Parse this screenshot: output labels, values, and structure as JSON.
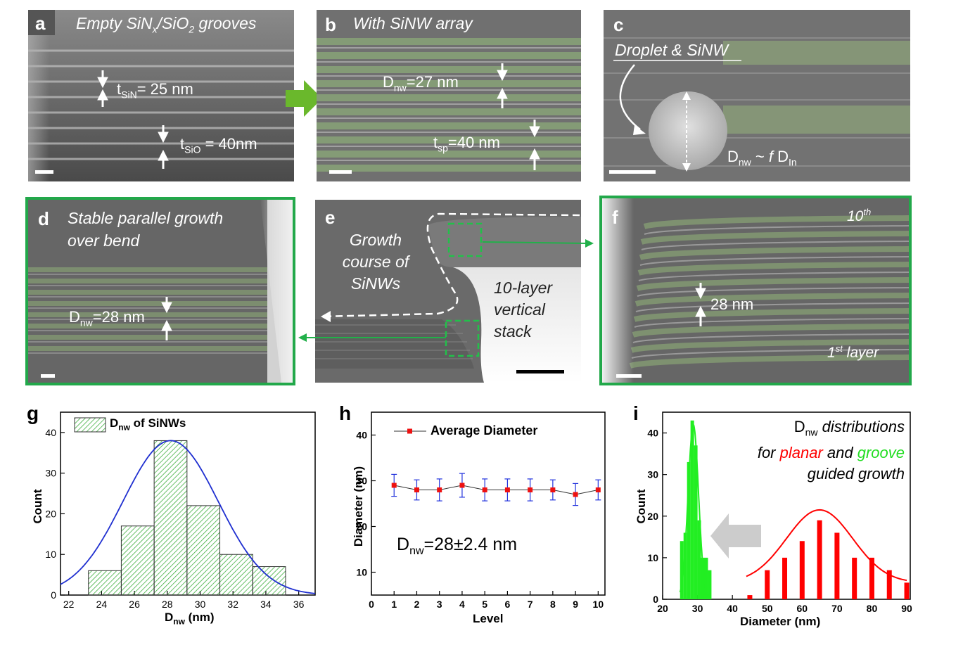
{
  "panels": {
    "a": {
      "letter": "a",
      "title": "Empty SiN",
      "title_sub": "x",
      "title_mid": "/SiO",
      "title_sub2": "2",
      "title_end": " grooves",
      "m1_main": "t",
      "m1_sub": "SiN",
      "m1_val": "= 25 nm",
      "m2_main": "t",
      "m2_sub": "SiO",
      "m2_val": " = 40nm"
    },
    "b": {
      "letter": "b",
      "title": "With SiNW array",
      "m1_main": "D",
      "m1_sub": "nw",
      "m1_val": "=27 nm",
      "m2_main": "t",
      "m2_sub": "sp",
      "m2_val": "=40 nm"
    },
    "c": {
      "letter": "c",
      "title": "Droplet & SiNW",
      "eq_main": "D",
      "eq_sub": "nw",
      "eq_mid": " ~ ",
      "eq_f": "f",
      "eq_d": " D",
      "eq_sub2": "In"
    },
    "d": {
      "letter": "d",
      "title_line1": "Stable parallel growth",
      "title_line2": "over bend",
      "m_main": "D",
      "m_sub": "nw",
      "m_val": "=28 nm"
    },
    "e": {
      "letter": "e",
      "course_line1": "Growth",
      "course_line2": "course of",
      "course_line3": "SiNWs",
      "stack_line1": "10-layer",
      "stack_line2": "vertical",
      "stack_line3": "stack"
    },
    "f": {
      "letter": "f",
      "top_label": "10",
      "top_sup": "th",
      "meas": "28 nm",
      "bottom_label": "1",
      "bottom_sup": "st",
      "bottom_end": "  layer"
    }
  },
  "colors": {
    "green_border": "#22a84a",
    "hist_green": "#33aa33",
    "fit_blue": "#1f2fd0",
    "red": "#ff0000",
    "bright_green": "#22ee22"
  },
  "chart_data": [
    {
      "id": "g",
      "letter": "g",
      "type": "bar",
      "legend": "D",
      "legend_sub": "nw",
      "legend_end": " of SiNWs",
      "xlabel": "D",
      "xlabel_sub": "nw",
      "xlabel_end": " (nm)",
      "ylabel": "Count",
      "xlim": [
        21.5,
        37
      ],
      "ylim": [
        0,
        45
      ],
      "xticks": [
        22,
        24,
        26,
        28,
        30,
        32,
        34,
        36
      ],
      "yticks": [
        0,
        10,
        20,
        30,
        40
      ],
      "bins": [
        {
          "center": 24.2,
          "value": 6
        },
        {
          "center": 26.2,
          "value": 17
        },
        {
          "center": 28.2,
          "value": 38
        },
        {
          "center": 30.2,
          "value": 22
        },
        {
          "center": 32.2,
          "value": 10
        },
        {
          "center": 34.2,
          "value": 7
        }
      ],
      "bin_width": 2,
      "fit": {
        "type": "gaussian",
        "mean": 28.2,
        "sigma": 2.9,
        "amplitude": 38
      }
    },
    {
      "id": "h",
      "letter": "h",
      "type": "line",
      "legend": "Average Diameter",
      "xlabel": "Level",
      "ylabel": "Diameter (nm)",
      "annotation": "D",
      "annotation_sub": "nw",
      "annotation_end": "=28±2.4 nm",
      "xlim": [
        0,
        10.3
      ],
      "ylim": [
        5,
        45
      ],
      "xticks": [
        0,
        1,
        2,
        3,
        4,
        5,
        6,
        7,
        8,
        9,
        10
      ],
      "yticks": [
        10,
        20,
        30,
        40
      ],
      "x": [
        1,
        2,
        3,
        4,
        5,
        6,
        7,
        8,
        9,
        10
      ],
      "y": [
        29,
        28,
        28,
        29,
        28,
        28,
        28,
        28,
        27,
        28
      ],
      "err": [
        2.4,
        2.2,
        2.4,
        2.6,
        2.4,
        2.4,
        2.4,
        2.2,
        2.4,
        2.2
      ]
    },
    {
      "id": "i",
      "letter": "i",
      "type": "bar",
      "annotation_line1_main": "D",
      "annotation_line1_sub": "nw",
      "annotation_line1_end": " distributions",
      "annotation_line2_a": "for ",
      "annotation_line2_b": "planar",
      "annotation_line2_c": " and ",
      "annotation_line2_d": "groove",
      "annotation_line3": "guided growth",
      "xlabel": "Diameter (nm)",
      "ylabel": "Count",
      "xlim": [
        20,
        91
      ],
      "ylim": [
        0,
        45
      ],
      "xticks": [
        20,
        30,
        40,
        50,
        60,
        70,
        80,
        90
      ],
      "yticks": [
        0,
        10,
        20,
        30,
        40
      ],
      "series": [
        {
          "name": "groove",
          "x": [
            25.5,
            26.5,
            27.5,
            28.5,
            29.5,
            30.5,
            31.5,
            32.5,
            33.5
          ],
          "values": [
            14,
            16,
            33,
            43,
            37,
            19,
            10,
            10,
            7
          ],
          "fit": {
            "mean": 28.8,
            "sigma": 1.5,
            "amplitude": 42
          }
        },
        {
          "name": "planar",
          "x": [
            45,
            50,
            55,
            60,
            65,
            70,
            75,
            80,
            85,
            90
          ],
          "values": [
            1,
            7,
            10,
            14,
            19,
            16,
            10,
            10,
            7,
            4
          ],
          "fit": {
            "mean": 65,
            "sigma": 9.5,
            "amplitude": 17.5,
            "offset": 4
          }
        }
      ]
    }
  ]
}
